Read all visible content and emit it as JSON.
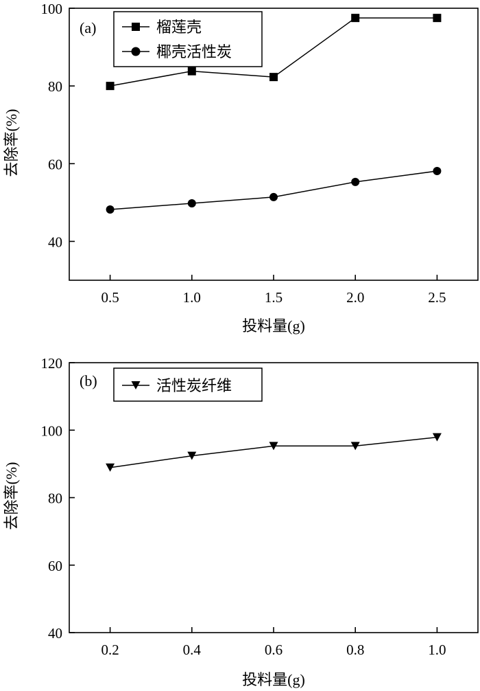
{
  "chart_data": [
    {
      "type": "line",
      "panel_label": "(a)",
      "xlabel": "投料量(g)",
      "ylabel": "去除率(%)",
      "xlim": [
        0.25,
        2.75
      ],
      "ylim": [
        30,
        100
      ],
      "x_ticks": [
        0.5,
        1.0,
        1.5,
        2.0,
        2.5
      ],
      "x_tick_labels": [
        "0.5",
        "1.0",
        "1.5",
        "2.0",
        "2.5"
      ],
      "y_ticks": [
        40,
        60,
        80,
        100
      ],
      "y_tick_labels": [
        "40",
        "60",
        "80",
        "100"
      ],
      "legend_position": "top-left",
      "series": [
        {
          "name": "榴莲壳",
          "marker": "square",
          "x": [
            0.5,
            1.0,
            1.5,
            2.0,
            2.5
          ],
          "values": [
            80.0,
            83.8,
            82.3,
            97.5,
            97.5
          ]
        },
        {
          "name": "椰壳活性炭",
          "marker": "circle",
          "x": [
            0.5,
            1.0,
            1.5,
            2.0,
            2.5
          ],
          "values": [
            48.2,
            49.8,
            51.4,
            55.3,
            58.1
          ]
        }
      ]
    },
    {
      "type": "line",
      "panel_label": "(b)",
      "xlabel": "投料量(g)",
      "ylabel": "去除率(%)",
      "xlim": [
        0.1,
        1.1
      ],
      "ylim": [
        40,
        120
      ],
      "x_ticks": [
        0.2,
        0.4,
        0.6,
        0.8,
        1.0
      ],
      "x_tick_labels": [
        "0.2",
        "0.4",
        "0.6",
        "0.8",
        "1.0"
      ],
      "y_ticks": [
        40,
        60,
        80,
        100,
        120
      ],
      "y_tick_labels": [
        "40",
        "60",
        "80",
        "100",
        "120"
      ],
      "legend_position": "top-left",
      "series": [
        {
          "name": "活性炭纤维",
          "marker": "triangle-down",
          "x": [
            0.2,
            0.4,
            0.6,
            0.8,
            1.0
          ],
          "values": [
            88.9,
            92.4,
            95.3,
            95.3,
            97.9
          ]
        }
      ]
    }
  ]
}
